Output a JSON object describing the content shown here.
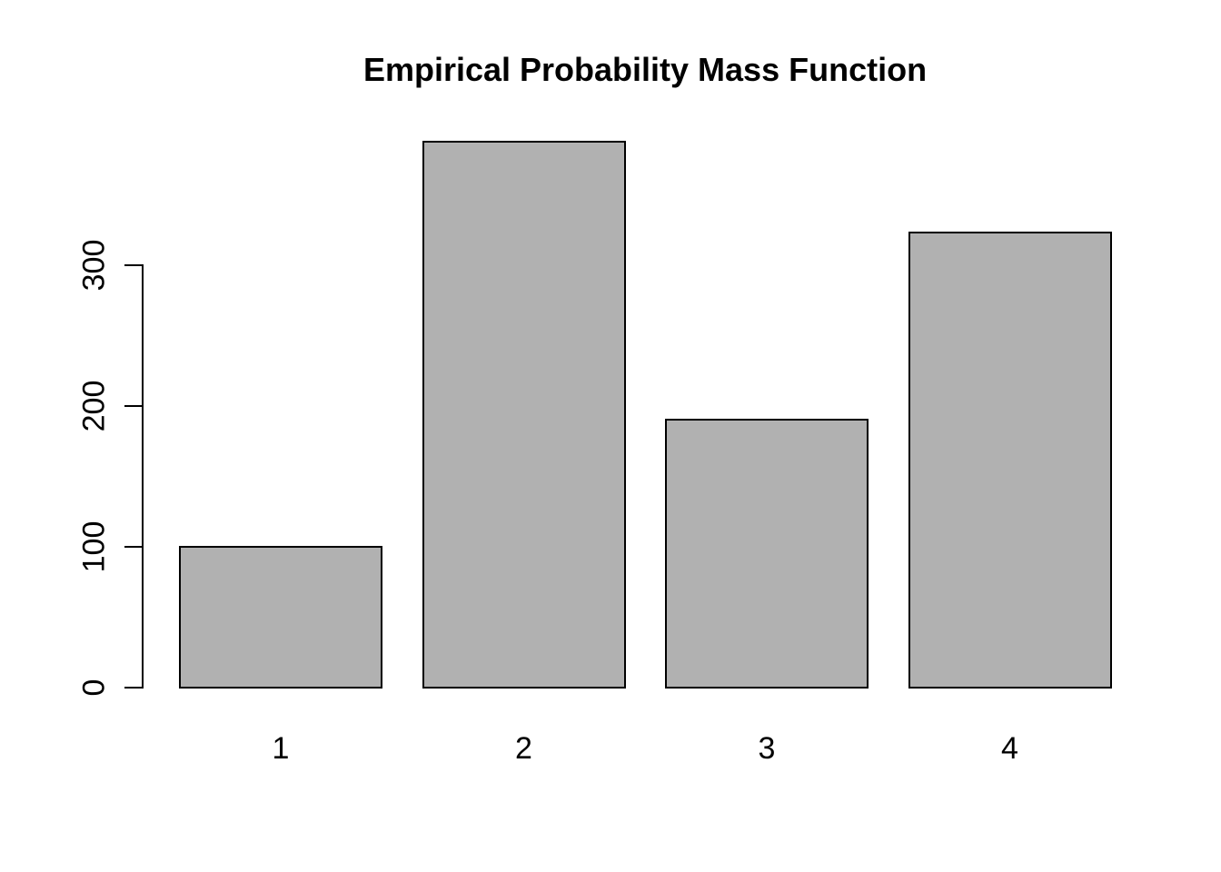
{
  "chart_data": {
    "type": "bar",
    "title": "Empirical Probability Mass Function",
    "categories": [
      "1",
      "2",
      "3",
      "4"
    ],
    "values": [
      100,
      388,
      190,
      323
    ],
    "xlabel": "",
    "ylabel": "",
    "y_ticks": [
      0,
      100,
      200,
      300
    ],
    "ylim": [
      0,
      400
    ],
    "grid": false,
    "legend": false,
    "colors": {
      "bar_fill": "#b1b1b1",
      "bar_border": "#000000",
      "axis": "#000000",
      "text": "#000000",
      "background": "#ffffff"
    }
  }
}
